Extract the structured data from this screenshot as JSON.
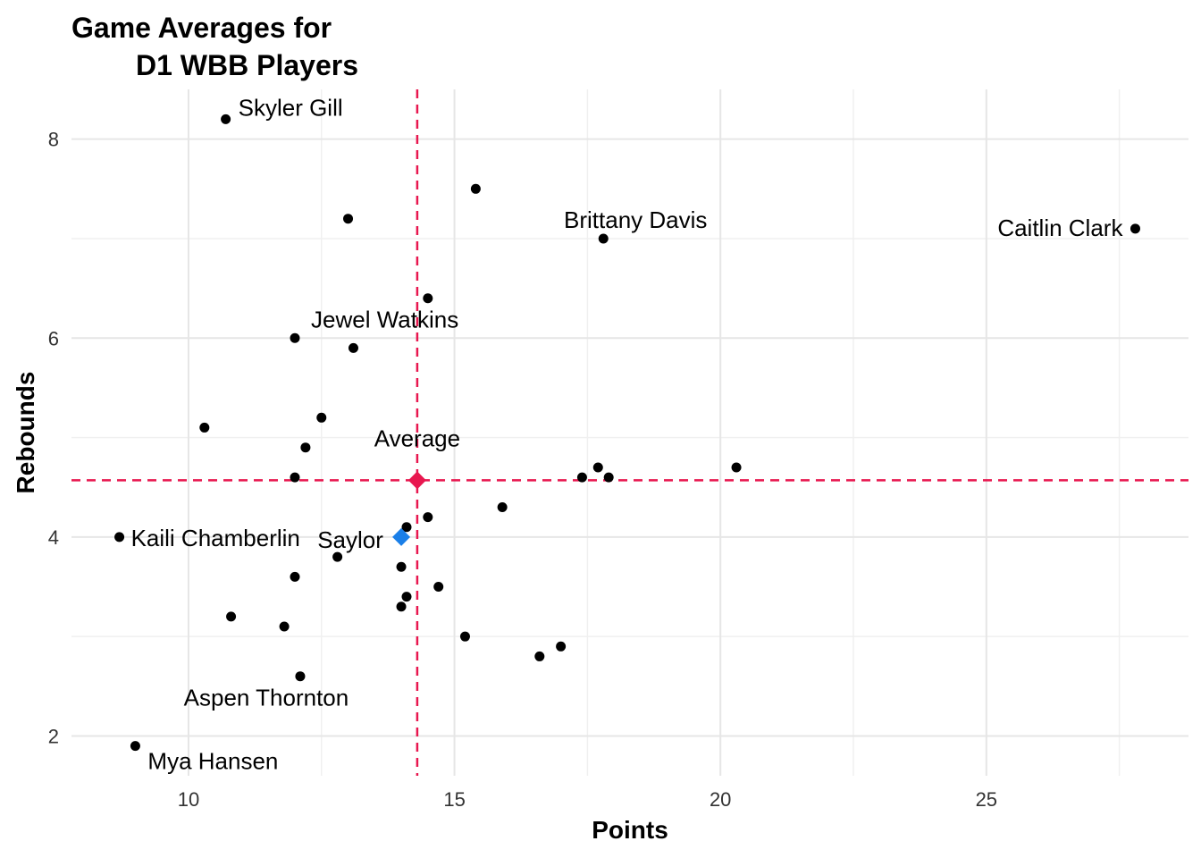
{
  "chart_data": {
    "type": "scatter",
    "title_lines": [
      "Game Averages for",
      "D1 WBB Players"
    ],
    "xlabel": "Points",
    "ylabel": "Rebounds",
    "xlim": [
      7.8,
      28.8
    ],
    "ylim": [
      1.6,
      8.5
    ],
    "x_ticks": [
      10,
      15,
      20,
      25
    ],
    "y_ticks": [
      2,
      4,
      6,
      8
    ],
    "grid": true,
    "colors": {
      "points": "#000000",
      "average": "#E8174F",
      "highlight": "#1A7FE8",
      "grid": "#e6e6e6"
    },
    "points": [
      {
        "x": 10.7,
        "y": 8.2,
        "label": "Skyler Gill"
      },
      {
        "x": 15.4,
        "y": 7.5
      },
      {
        "x": 13.0,
        "y": 7.2
      },
      {
        "x": 17.8,
        "y": 7.0,
        "label": "Brittany Davis"
      },
      {
        "x": 27.8,
        "y": 7.1,
        "label": "Caitlin Clark"
      },
      {
        "x": 14.5,
        "y": 6.4
      },
      {
        "x": 12.0,
        "y": 6.0,
        "label": "Jewel Watkins"
      },
      {
        "x": 13.1,
        "y": 5.9
      },
      {
        "x": 10.3,
        "y": 5.1
      },
      {
        "x": 12.5,
        "y": 5.2
      },
      {
        "x": 12.2,
        "y": 4.9
      },
      {
        "x": 12.0,
        "y": 4.6
      },
      {
        "x": 17.4,
        "y": 4.6
      },
      {
        "x": 17.7,
        "y": 4.7
      },
      {
        "x": 17.9,
        "y": 4.6
      },
      {
        "x": 20.3,
        "y": 4.7
      },
      {
        "x": 15.9,
        "y": 4.3
      },
      {
        "x": 14.5,
        "y": 4.2
      },
      {
        "x": 14.1,
        "y": 4.1
      },
      {
        "x": 8.7,
        "y": 4.0,
        "label": "Kaili Chamberlin"
      },
      {
        "x": 12.8,
        "y": 3.8
      },
      {
        "x": 14.0,
        "y": 3.7
      },
      {
        "x": 12.0,
        "y": 3.6
      },
      {
        "x": 14.7,
        "y": 3.5
      },
      {
        "x": 14.1,
        "y": 3.4
      },
      {
        "x": 14.0,
        "y": 3.3
      },
      {
        "x": 10.8,
        "y": 3.2
      },
      {
        "x": 11.8,
        "y": 3.1
      },
      {
        "x": 15.2,
        "y": 3.0
      },
      {
        "x": 17.0,
        "y": 2.9
      },
      {
        "x": 16.6,
        "y": 2.8
      },
      {
        "x": 12.1,
        "y": 2.6,
        "label": "Aspen Thornton"
      },
      {
        "x": 9.0,
        "y": 1.9,
        "label": "Mya Hansen"
      }
    ],
    "average": {
      "x": 14.3,
      "y": 4.57,
      "label": "Average"
    },
    "highlight": {
      "x": 14.0,
      "y": 4.0,
      "label": "Saylor"
    }
  }
}
